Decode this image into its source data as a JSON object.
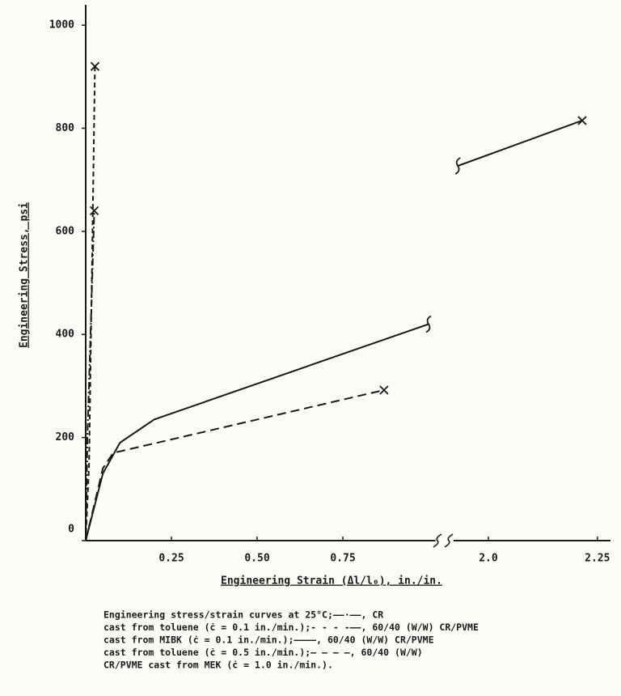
{
  "chart_data": {
    "type": "line",
    "ylabel": "Engineering Stress, psi",
    "xlabel": "Engineering Strain (Δl/l₀), in./in.",
    "ylim": [
      0,
      1030
    ],
    "yticks": [
      0,
      200,
      400,
      600,
      800,
      1000
    ],
    "x_segments": [
      {
        "xlim": [
          0,
          1.02
        ],
        "xticks": [
          0.25,
          {
            "value": 0.5,
            "label": "0.50"
          },
          0.75
        ]
      },
      {
        "xlim": [
          1.92,
          2.28
        ],
        "xticks": [
          {
            "value": 2,
            "label": "2.0"
          },
          2.25
        ]
      }
    ],
    "series": [
      {
        "color": "#1a1a1a",
        "dash": "dash-dot",
        "x": [
          0,
          0.005,
          0.025
        ],
        "values": [
          0,
          200,
          640
        ],
        "markers": [
          null,
          null,
          "x"
        ]
      },
      {
        "color": "#1a1a1a",
        "dash": "short-dash",
        "x": [
          0,
          0.01,
          0.027
        ],
        "values": [
          0,
          150,
          920
        ],
        "markers": [
          null,
          null,
          "x"
        ]
      },
      {
        "color": "#1a1a1a",
        "dash": "solid",
        "x": [
          0,
          0.05,
          0.1,
          0.2,
          1.0,
          null,
          1.93,
          2.215
        ],
        "values": [
          0,
          130,
          190,
          235,
          420,
          null,
          727,
          815
        ],
        "markers": [
          null,
          null,
          null,
          null,
          "break",
          null,
          "break",
          "x"
        ]
      },
      {
        "color": "#1a1a1a",
        "dash": "long-dash",
        "x": [
          0,
          0.05,
          0.08,
          0.87
        ],
        "values": [
          0,
          140,
          170,
          292
        ],
        "markers": [
          null,
          null,
          null,
          "x"
        ]
      }
    ],
    "caption": [
      "Engineering stress/strain curves at 25°C;——·——, CR",
      "cast from toluene (ċ = 0.1 in./min.);- - - -——, 60/40 (W/W) CR/PVME",
      "cast from MIBK (ċ = 0.1 in./min.);————, 60/40 (W/W) CR/PVME",
      "cast from toluene (ċ = 0.5 in./min.);— — — —, 60/40 (W/W)",
      "CR/PVME cast from MEK (ċ = 1.0 in./min.)."
    ]
  }
}
